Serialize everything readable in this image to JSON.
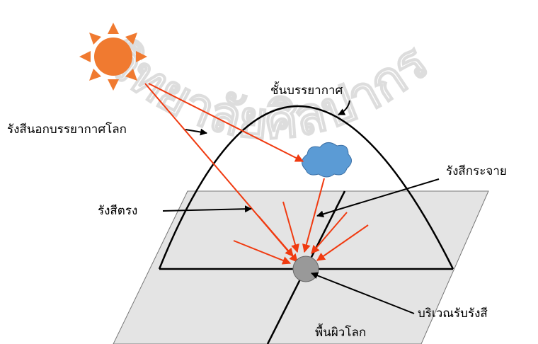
{
  "watermark": "วิทยาลัยศิลปากร",
  "labels": {
    "atmosphere": "ชั้นบรรยากาศ",
    "extraterrestrial": "รังสีนอกบรรยากาศโลก",
    "diffuse": "รังสีกระจาย",
    "direct": "รังสีตรง",
    "receiver": "บริเวณรับรังสี",
    "surface": "พื้นผิวโลก"
  }
}
